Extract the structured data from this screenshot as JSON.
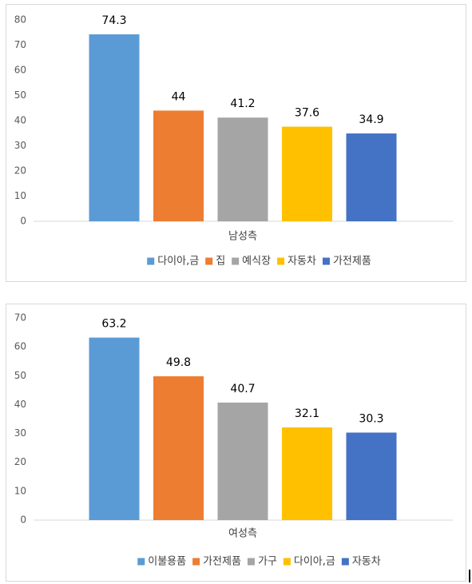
{
  "chart_data": [
    {
      "type": "bar",
      "categories": [
        "남성측"
      ],
      "series": [
        {
          "name": "다이아,금",
          "color": "#5b9bd5",
          "values": [
            74.3
          ]
        },
        {
          "name": "집",
          "color": "#ed7d31",
          "values": [
            44
          ]
        },
        {
          "name": "예식장",
          "color": "#a5a5a5",
          "values": [
            41.2
          ]
        },
        {
          "name": "자동차",
          "color": "#ffc000",
          "values": [
            37.6
          ]
        },
        {
          "name": "가전제품",
          "color": "#4472c4",
          "values": [
            34.9
          ]
        }
      ],
      "ylim": [
        0,
        80
      ],
      "yticks": [
        0,
        10,
        20,
        30,
        40,
        50,
        60,
        70,
        80
      ],
      "grid": false,
      "legend": "bottom"
    },
    {
      "type": "bar",
      "categories": [
        "여성측"
      ],
      "series": [
        {
          "name": "이불용품",
          "color": "#5b9bd5",
          "values": [
            63.2
          ]
        },
        {
          "name": "가전제품",
          "color": "#ed7d31",
          "values": [
            49.8
          ]
        },
        {
          "name": "가구",
          "color": "#a5a5a5",
          "values": [
            40.7
          ]
        },
        {
          "name": "다이아,금",
          "color": "#ffc000",
          "values": [
            32.1
          ]
        },
        {
          "name": "자동차",
          "color": "#4472c4",
          "values": [
            30.3
          ]
        }
      ],
      "ylim": [
        0,
        70
      ],
      "yticks": [
        0,
        10,
        20,
        30,
        40,
        50,
        60,
        70
      ],
      "grid": false,
      "legend": "bottom"
    }
  ]
}
